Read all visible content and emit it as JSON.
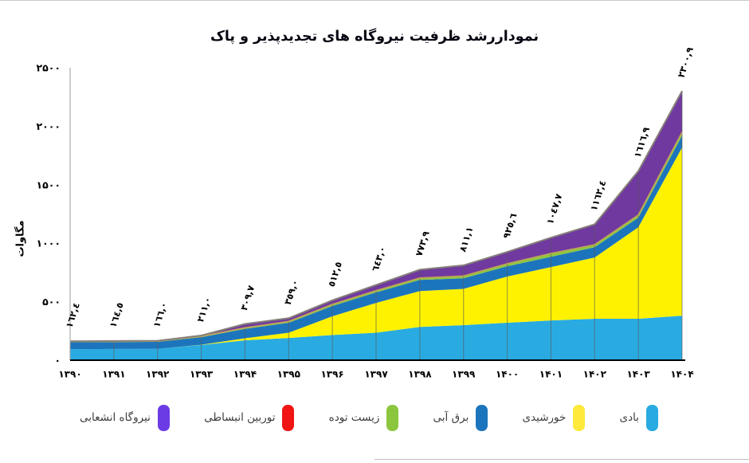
{
  "title": "نموداررشد ظرفیت نیروگاه های تجدیدپذیر و پاک",
  "y_axis": {
    "label": "مگاوات",
    "ticks": [
      "۲۵۰۰",
      "۲۰۰۰",
      "۱۵۰۰",
      "۱۰۰۰",
      "۵۰۰",
      "۰"
    ],
    "tick_values": [
      2500,
      2000,
      1500,
      1000,
      500,
      0
    ]
  },
  "x_axis": {
    "years": [
      "۱۳۹۰",
      "۱۳۹۱",
      "۱۳۹۲",
      "۱۳۹۳",
      "۱۳۹۴",
      "۱۳۹۵",
      "۱۳۹۶",
      "۱۳۹۷",
      "۱۳۹۸",
      "۱۳۹۹",
      "۱۴۰۰",
      "۱۴۰۱",
      "۱۴۰۲",
      "۱۴۰۳",
      "۱۴۰۴"
    ]
  },
  "chart_data": {
    "type": "area",
    "stacked": true,
    "title": "نموداررشد ظرفیت نیروگاه های تجدیدپذیر و پاک",
    "ylabel": "مگاوات",
    "ylim": [
      0,
      2500
    ],
    "grid": "vertical-drop-lines",
    "legend_position": "bottom",
    "x": [
      1390,
      1391,
      1392,
      1393,
      1394,
      1395,
      1396,
      1397,
      1398,
      1399,
      1400,
      1401,
      1402,
      1403,
      1404
    ],
    "totals": [
      162.4,
      164.5,
      166.0,
      211.0,
      309.7,
      359.0,
      512.5,
      643.0,
      773.9,
      811.1,
      925.6,
      1047.7,
      1162.4,
      1616.9,
      2300.9
    ],
    "total_labels": [
      "١٦٢,٤",
      "١٦٤,٥",
      "١٦٦,٠",
      "٢١١,٠",
      "٣٠٩,٧",
      "٣٥٩,٠",
      "٥١٢,٥",
      "٦٤٣,٠",
      "٧٧٣,٩",
      "٨١١,١",
      "٩٢٥,٦",
      "١٠٤٧,٧",
      "١١٦٢,٤",
      "١٦١٦,٩",
      "٢٣٠٠,٩"
    ],
    "series_note": "totals are exact from data labels; per-series values estimated from stacked band heights",
    "series": [
      {
        "key": "wind",
        "name": "بادی",
        "color": "#29ABE2",
        "values": [
          95,
          96,
          97,
          130,
          170,
          190,
          215,
          235,
          285,
          300,
          320,
          340,
          354,
          354,
          381
        ]
      },
      {
        "key": "solar",
        "name": "خورشیدی",
        "color": "#FFF200",
        "values": [
          0,
          0,
          0,
          2,
          17,
          45,
          160.5,
          255,
          306,
          310,
          395,
          456,
          524,
          783,
          1437
        ]
      },
      {
        "key": "hydro",
        "name": "برق آبی",
        "color": "#1C75BC",
        "values": [
          58,
          59,
          60,
          65,
          80,
          85,
          88,
          90,
          95,
          90,
          88,
          88,
          88,
          82,
          102
        ]
      },
      {
        "key": "biomass",
        "name": "زیست توده",
        "color": "#8CC63F",
        "values": [
          4,
          4,
          4,
          5,
          8,
          10,
          12,
          13,
          15,
          18,
          20,
          27,
          20,
          20,
          27
        ]
      },
      {
        "key": "expansion-turbine",
        "name": "توربین انبساطی",
        "color": "#F01414",
        "values": [
          2,
          2,
          2,
          2,
          2,
          2,
          2,
          2,
          2,
          2,
          2,
          2,
          2,
          2,
          2
        ]
      },
      {
        "key": "distributed",
        "name": "نیروگاه انشعابی",
        "color": "#7039A0",
        "values": [
          3.4,
          3.5,
          3,
          7,
          32.7,
          27,
          35,
          48,
          70.9,
          91.1,
          100.6,
          134.7,
          174.4,
          375.9,
          351.9
        ]
      }
    ],
    "outline_top_color": "#857F78",
    "outline_purple_bottom_color": "#C2A25B",
    "drop_line_color": "#5a5a5a"
  },
  "legend": {
    "items": [
      {
        "key": "wind",
        "label": "بادی",
        "color": "#29ABE2"
      },
      {
        "key": "solar",
        "label": "خورشیدی",
        "color": "#FFE93B"
      },
      {
        "key": "hydro",
        "label": "برق آبی",
        "color": "#1C75BC"
      },
      {
        "key": "biomass",
        "label": "زیست توده",
        "color": "#8CC63F"
      },
      {
        "key": "expansion-turbine",
        "label": "توربین انبساطی",
        "color": "#F01414"
      },
      {
        "key": "distributed",
        "label": "نیروگاه انشعابی",
        "color": "#6B3BE6"
      }
    ]
  }
}
